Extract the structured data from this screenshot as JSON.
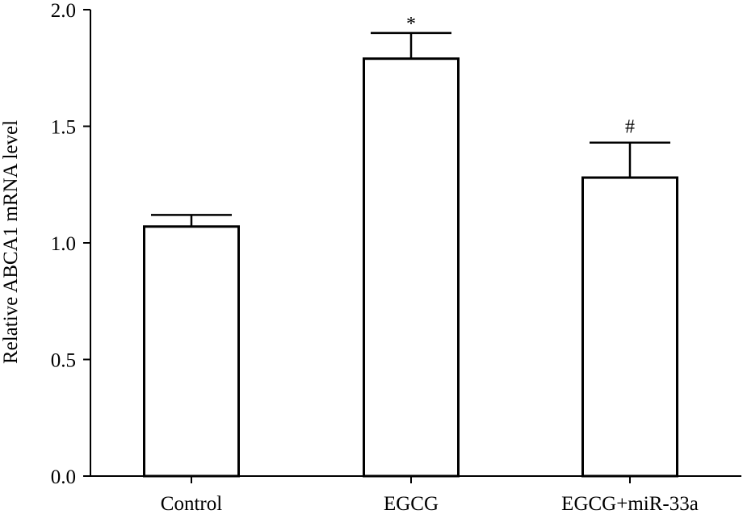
{
  "chart_data": {
    "type": "bar",
    "title": "",
    "xlabel": "",
    "ylabel": "Relative ABCA1 mRNA level",
    "ylim": [
      0,
      2.0
    ],
    "yticks": [
      0.0,
      0.5,
      1.0,
      1.5,
      2.0
    ],
    "ytick_labels": [
      "0.0",
      "0.5",
      "1.0",
      "1.5",
      "2.0"
    ],
    "categories": [
      "Control",
      "EGCG",
      "EGCG+miR-33a"
    ],
    "values": [
      1.07,
      1.79,
      1.28
    ],
    "errors": [
      0.05,
      0.11,
      0.15
    ],
    "annotations": [
      "",
      "*",
      "#"
    ],
    "bar_fill": "#ffffff",
    "stroke_color": "#000000"
  }
}
